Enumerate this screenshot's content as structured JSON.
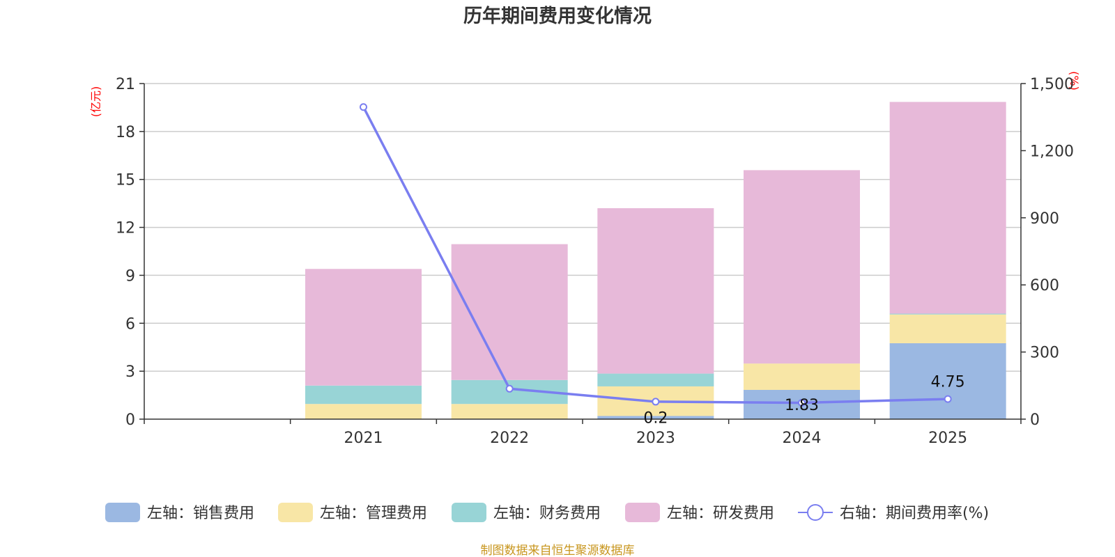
{
  "chart_data": {
    "type": "bar",
    "title": "历年期间费用变化情况",
    "categories": [
      "",
      "2021",
      "2022",
      "2023",
      "2024",
      "2025"
    ],
    "left_axis": {
      "unit": "(亿元)",
      "ylim": [
        0,
        21
      ],
      "ticks": [
        0,
        3,
        6,
        9,
        12,
        15,
        18,
        21
      ]
    },
    "right_axis": {
      "unit": "(%)",
      "ylim": [
        0,
        1500
      ],
      "ticks": [
        "0",
        "300",
        "600",
        "900",
        "1,200",
        "1,500"
      ],
      "tick_values": [
        0,
        300,
        600,
        900,
        1200,
        1500
      ]
    },
    "series": [
      {
        "name": "左轴：销售费用",
        "key": "sales",
        "color": "#9bb8e2",
        "values": [
          0,
          0,
          0,
          0.2,
          1.83,
          4.75
        ],
        "labels": [
          "",
          "",
          "",
          "0.2",
          "1.83",
          "4.75"
        ]
      },
      {
        "name": "左轴：管理费用",
        "key": "admin",
        "color": "#f8e6a6",
        "values": [
          0,
          0.95,
          0.95,
          1.85,
          1.65,
          1.8
        ]
      },
      {
        "name": "左轴：财务费用",
        "key": "finance",
        "color": "#98d4d6",
        "values": [
          0,
          1.15,
          1.5,
          0.8,
          0,
          0.05
        ]
      },
      {
        "name": "左轴：研发费用",
        "key": "rd",
        "color": "#e7b9d9",
        "values": [
          0,
          7.3,
          8.5,
          10.35,
          12.1,
          13.25
        ]
      },
      {
        "name": "右轴：期间费用率(%)",
        "key": "rate",
        "type": "line",
        "color": "#7a7ef0",
        "values": [
          null,
          1395,
          136,
          78,
          73,
          90
        ]
      }
    ]
  },
  "source_note": "制图数据来自恒生聚源数据库"
}
